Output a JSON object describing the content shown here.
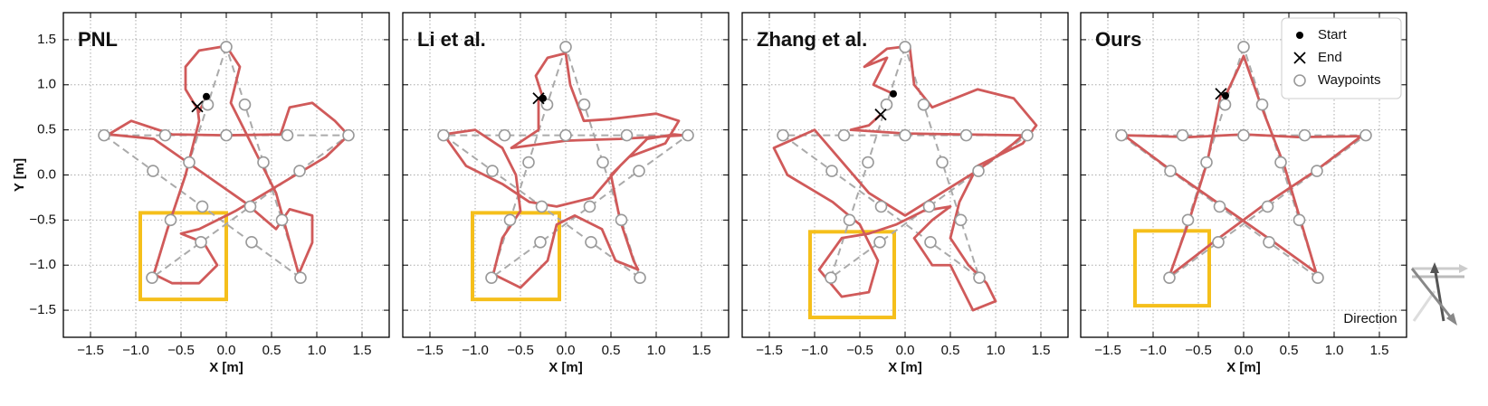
{
  "chart_data": [
    {
      "type": "line",
      "title": "PNL",
      "xlabel": "X [m]",
      "ylabel": "Y [m]",
      "show_ytick_labels": true,
      "xlim": [
        -1.8,
        1.8
      ],
      "ylim": [
        -1.8,
        1.8
      ],
      "grid": true,
      "xticks": [
        {
          "value": -1.5,
          "label": "−1.5"
        },
        {
          "value": -1,
          "label": "−1.0"
        },
        {
          "value": -0.5,
          "label": "−0.5"
        },
        {
          "value": 0,
          "label": "0.0"
        },
        0.5,
        {
          "value": 1,
          "label": "1.0"
        },
        1.5
      ],
      "yticks": [
        {
          "value": -1.5,
          "label": "−1.5"
        },
        {
          "value": -1,
          "label": "−1.0"
        },
        {
          "value": -0.5,
          "label": "−0.5"
        },
        {
          "value": 0,
          "label": "0.0"
        },
        0.5,
        {
          "value": 1,
          "label": "1.0"
        },
        1.5
      ],
      "highlight_box": {
        "x": [
          -0.95,
          0.0
        ],
        "y": [
          -1.38,
          -0.42
        ],
        "color": "#f5bf1b"
      },
      "series": [
        {
          "linestyle": "dashed",
          "color": "#aaaaaa",
          "x": [
            0,
            -0.82,
            1.35,
            -1.35,
            0.82,
            0
          ],
          "y": [
            1.42,
            -1.14,
            0.44,
            0.44,
            -1.14,
            1.42
          ]
        },
        {
          "linestyle": "solid",
          "color": "#d05a5a",
          "x": [
            -0.22,
            -0.3,
            -0.45,
            -0.45,
            -0.3,
            0,
            0.15,
            0.05,
            0.3,
            0.55,
            0.8,
            0.95,
            0.95,
            0.7,
            0.55,
            0.2,
            -0.3,
            -0.8,
            -1.3,
            -1.05,
            -0.6,
            0,
            0.6,
            0.7,
            0.95,
            1.2,
            1.35,
            1.1,
            0.6,
            0.1,
            -0.3,
            -0.5,
            -0.25,
            -0.1,
            -0.3,
            -0.6,
            -0.8,
            -0.65,
            -0.45,
            -0.3,
            -0.32
          ],
          "y": [
            0.87,
            0.7,
            0.95,
            1.2,
            1.38,
            1.43,
            1.2,
            0.8,
            0.3,
            -0.2,
            -1.1,
            -0.75,
            -0.45,
            -0.38,
            -0.6,
            -0.3,
            0.05,
            0.4,
            0.45,
            0.6,
            0.45,
            0.44,
            0.45,
            0.75,
            0.8,
            0.6,
            0.44,
            0.2,
            -0.1,
            -0.4,
            -0.6,
            -0.65,
            -0.75,
            -1.0,
            -1.2,
            -1.2,
            -1.1,
            -0.6,
            0.0,
            0.6,
            0.76
          ]
        },
        {
          "marker": "open-circle",
          "color": "#999999",
          "x": [
            0,
            -0.205,
            -0.41,
            -0.615,
            -0.82,
            -0.28,
            0.265,
            0.81,
            1.35,
            0.675,
            0,
            -0.675,
            -1.35,
            -0.81,
            -0.265,
            0.28,
            0.82,
            0.615,
            0.41,
            0.205
          ],
          "y": [
            1.42,
            0.78,
            0.14,
            -0.5,
            -1.14,
            -0.745,
            -0.35,
            0.045,
            0.44,
            0.44,
            0.44,
            0.44,
            0.44,
            0.045,
            -0.35,
            -0.745,
            -1.14,
            -0.5,
            0.14,
            0.78
          ]
        },
        {
          "marker": "circle",
          "color": "#000000",
          "x": [
            -0.22
          ],
          "y": [
            0.87
          ]
        },
        {
          "marker": "x",
          "color": "#000000",
          "x": [
            -0.32
          ],
          "y": [
            0.76
          ]
        }
      ]
    },
    {
      "type": "line",
      "title": "Li et al.",
      "xlabel": "X [m]",
      "show_ytick_labels": false,
      "xlim": [
        -1.8,
        1.8
      ],
      "ylim": [
        -1.8,
        1.8
      ],
      "grid": true,
      "xticks": [
        {
          "value": -1.5,
          "label": "−1.5"
        },
        {
          "value": -1,
          "label": "−1.0"
        },
        {
          "value": -0.5,
          "label": "−0.5"
        },
        {
          "value": 0,
          "label": "0.0"
        },
        0.5,
        {
          "value": 1,
          "label": "1.0"
        },
        1.5
      ],
      "yticks": [
        -1.5,
        -1,
        -0.5,
        0,
        0.5,
        1,
        1.5
      ],
      "highlight_box": {
        "x": [
          -1.03,
          -0.07
        ],
        "y": [
          -1.38,
          -0.42
        ],
        "color": "#f5bf1b"
      },
      "series": [
        {
          "linestyle": "dashed",
          "color": "#aaaaaa",
          "x": [
            0,
            -0.82,
            1.35,
            -1.35,
            0.82,
            0
          ],
          "y": [
            1.42,
            -1.14,
            0.44,
            0.44,
            -1.14,
            1.42
          ]
        },
        {
          "linestyle": "solid",
          "color": "#d05a5a",
          "x": [
            -0.25,
            -0.33,
            -0.2,
            0,
            0.05,
            0.2,
            0.5,
            1.0,
            1.25,
            1.1,
            0.7,
            0.5,
            0.6,
            0.75,
            0.8,
            0.55,
            0.4,
            0.1,
            -0.1,
            -0.2,
            -0.5,
            -0.8,
            -0.7,
            -0.5,
            -0.55,
            -0.7,
            -1.0,
            -1.35,
            -1.1,
            -0.7,
            -0.4,
            -0.1,
            0.3,
            0.6,
            0.9,
            1.2,
            1.3,
            0.6,
            0,
            -0.6,
            -0.3,
            -0.3
          ],
          "y": [
            0.85,
            1.1,
            1.3,
            1.35,
            1.0,
            0.6,
            0.62,
            0.68,
            0.6,
            0.35,
            0.2,
            0.0,
            -0.5,
            -0.95,
            -1.05,
            -0.95,
            -0.6,
            -0.45,
            -0.55,
            -0.95,
            -1.25,
            -1.1,
            -0.7,
            -0.4,
            0.0,
            0.3,
            0.5,
            0.45,
            0.1,
            -0.1,
            -0.3,
            -0.35,
            -0.25,
            0.1,
            0.4,
            0.45,
            0.44,
            0.4,
            0.38,
            0.3,
            0.5,
            0.85
          ]
        },
        {
          "marker": "open-circle",
          "color": "#999999",
          "x": [
            0,
            -0.205,
            -0.41,
            -0.615,
            -0.82,
            -0.28,
            0.265,
            0.81,
            1.35,
            0.675,
            0,
            -0.675,
            -1.35,
            -0.81,
            -0.265,
            0.28,
            0.82,
            0.615,
            0.41,
            0.205
          ],
          "y": [
            1.42,
            0.78,
            0.14,
            -0.5,
            -1.14,
            -0.745,
            -0.35,
            0.045,
            0.44,
            0.44,
            0.44,
            0.44,
            0.44,
            0.045,
            -0.35,
            -0.745,
            -1.14,
            -0.5,
            0.14,
            0.78
          ]
        },
        {
          "marker": "circle",
          "color": "#000000",
          "x": [
            -0.25
          ],
          "y": [
            0.85
          ]
        },
        {
          "marker": "x",
          "color": "#000000",
          "x": [
            -0.3
          ],
          "y": [
            0.85
          ]
        }
      ]
    },
    {
      "type": "line",
      "title": "Zhang et al.",
      "xlabel": "X [m]",
      "show_ytick_labels": false,
      "xlim": [
        -1.8,
        1.8
      ],
      "ylim": [
        -1.8,
        1.8
      ],
      "grid": true,
      "xticks": [
        {
          "value": -1.5,
          "label": "−1.5"
        },
        {
          "value": -1,
          "label": "−1.0"
        },
        {
          "value": -0.5,
          "label": "−0.5"
        },
        {
          "value": 0,
          "label": "0.0"
        },
        0.5,
        {
          "value": 1,
          "label": "1.0"
        },
        1.5
      ],
      "yticks": [
        -1.5,
        -1,
        -0.5,
        0,
        0.5,
        1,
        1.5
      ],
      "highlight_box": {
        "x": [
          -1.05,
          -0.12
        ],
        "y": [
          -1.58,
          -0.63
        ],
        "color": "#f5bf1b"
      },
      "series": [
        {
          "linestyle": "dashed",
          "color": "#aaaaaa",
          "x": [
            0,
            -0.82,
            1.35,
            -1.35,
            0.82,
            0
          ],
          "y": [
            1.42,
            -1.14,
            0.44,
            0.44,
            -1.14,
            1.42
          ]
        },
        {
          "linestyle": "solid",
          "color": "#d05a5a",
          "x": [
            -0.13,
            -0.35,
            -0.2,
            -0.45,
            -0.2,
            0.05,
            0.1,
            0.3,
            0.8,
            1.2,
            1.45,
            1.3,
            0.8,
            0.6,
            0.5,
            0.7,
            0.9,
            1.0,
            0.75,
            0.5,
            0.3,
            0.1,
            0.3,
            0.5,
            0.2,
            -0.1,
            -0.4,
            -0.7,
            -0.95,
            -0.7,
            -0.4,
            -0.3,
            -0.5,
            -0.8,
            -1.3,
            -1.45,
            -1.0,
            -0.7,
            -0.4,
            0,
            0.4,
            0.8,
            1.2,
            1.3,
            0.6,
            0,
            -0.6,
            -0.4,
            -0.27
          ],
          "y": [
            0.9,
            1.0,
            1.3,
            1.2,
            1.4,
            1.43,
            1.0,
            0.75,
            0.95,
            0.85,
            0.55,
            0.35,
            0.1,
            -0.3,
            -0.7,
            -1.0,
            -1.2,
            -1.4,
            -1.5,
            -1.0,
            -1.0,
            -0.7,
            -0.5,
            -0.35,
            -0.4,
            -0.55,
            -0.65,
            -0.7,
            -1.05,
            -1.35,
            -1.3,
            -0.95,
            -0.55,
            -0.3,
            0.0,
            0.3,
            0.5,
            0.15,
            -0.2,
            -0.45,
            -0.2,
            0.05,
            0.35,
            0.44,
            0.45,
            0.46,
            0.5,
            0.55,
            0.67
          ]
        },
        {
          "marker": "open-circle",
          "color": "#999999",
          "x": [
            0,
            -0.205,
            -0.41,
            -0.615,
            -0.82,
            -0.28,
            0.265,
            0.81,
            1.35,
            0.675,
            0,
            -0.675,
            -1.35,
            -0.81,
            -0.265,
            0.28,
            0.82,
            0.615,
            0.41,
            0.205
          ],
          "y": [
            1.42,
            0.78,
            0.14,
            -0.5,
            -1.14,
            -0.745,
            -0.35,
            0.045,
            0.44,
            0.44,
            0.44,
            0.44,
            0.44,
            0.045,
            -0.35,
            -0.745,
            -1.14,
            -0.5,
            0.14,
            0.78
          ]
        },
        {
          "marker": "circle",
          "color": "#000000",
          "x": [
            -0.13
          ],
          "y": [
            0.9
          ]
        },
        {
          "marker": "x",
          "color": "#000000",
          "x": [
            -0.27
          ],
          "y": [
            0.67
          ]
        }
      ]
    },
    {
      "type": "line",
      "title": "Ours",
      "xlabel": "X [m]",
      "show_ytick_labels": false,
      "xlim": [
        -1.8,
        1.8
      ],
      "ylim": [
        -1.8,
        1.8
      ],
      "grid": true,
      "legend": "upper right",
      "direction_label": "Direction",
      "xticks": [
        {
          "value": -1.5,
          "label": "−1.5"
        },
        {
          "value": -1,
          "label": "−1.0"
        },
        {
          "value": -0.5,
          "label": "−0.5"
        },
        {
          "value": 0,
          "label": "0.0"
        },
        0.5,
        {
          "value": 1,
          "label": "1.0"
        },
        1.5
      ],
      "yticks": [
        -1.5,
        -1,
        -0.5,
        0,
        0.5,
        1,
        1.5
      ],
      "highlight_box": {
        "x": [
          -1.2,
          -0.38
        ],
        "y": [
          -1.45,
          -0.62
        ],
        "color": "#f5bf1b"
      },
      "series": [
        {
          "linestyle": "dashed",
          "color": "#aaaaaa",
          "x": [
            0,
            -0.82,
            1.35,
            -1.35,
            0.82,
            0
          ],
          "y": [
            1.42,
            -1.14,
            0.44,
            0.44,
            -1.14,
            1.42
          ]
        },
        {
          "linestyle": "solid",
          "color": "#d05a5a",
          "x": [
            -0.2,
            -0.05,
            0,
            0.2,
            0.45,
            0.8,
            0.3,
            -0.3,
            -0.8,
            -1.32,
            -0.6,
            0,
            0.6,
            1.3,
            0.8,
            0.2,
            -0.3,
            -0.82,
            -0.6,
            -0.4,
            -0.25
          ],
          "y": [
            0.88,
            1.2,
            1.32,
            0.75,
            0.1,
            -1.08,
            -0.72,
            -0.3,
            0.05,
            0.44,
            0.42,
            0.45,
            0.42,
            0.43,
            0.05,
            -0.35,
            -0.72,
            -1.12,
            -0.5,
            0.15,
            0.9
          ]
        },
        {
          "name": "Waypoints",
          "marker": "open-circle",
          "color": "#999999",
          "x": [
            0,
            -0.205,
            -0.41,
            -0.615,
            -0.82,
            -0.28,
            0.265,
            0.81,
            1.35,
            0.675,
            0,
            -0.675,
            -1.35,
            -0.81,
            -0.265,
            0.28,
            0.82,
            0.615,
            0.41,
            0.205
          ],
          "y": [
            1.42,
            0.78,
            0.14,
            -0.5,
            -1.14,
            -0.745,
            -0.35,
            0.045,
            0.44,
            0.44,
            0.44,
            0.44,
            0.44,
            0.045,
            -0.35,
            -0.745,
            -1.14,
            -0.5,
            0.14,
            0.78
          ]
        },
        {
          "name": "Start",
          "marker": "circle",
          "color": "#000000",
          "x": [
            -0.2
          ],
          "y": [
            0.88
          ]
        },
        {
          "name": "End",
          "marker": "x",
          "color": "#000000",
          "x": [
            -0.25
          ],
          "y": [
            0.9
          ]
        }
      ]
    }
  ]
}
